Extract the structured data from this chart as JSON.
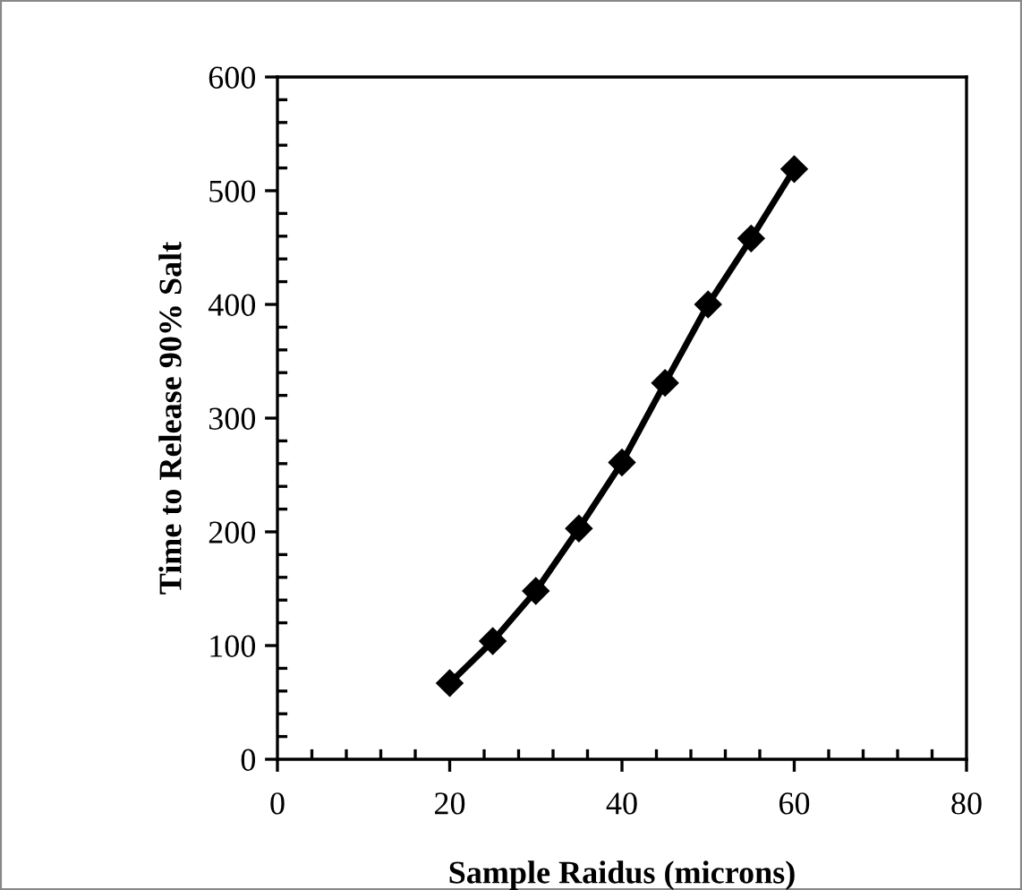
{
  "chart_data": {
    "type": "line",
    "xlabel": "Sample Raidus (microns)",
    "ylabel": "Time to Release 90% Salt",
    "x": [
      20,
      25,
      30,
      35,
      40,
      45,
      50,
      55,
      60
    ],
    "series": [
      {
        "color": "#000000",
        "values": [
          67,
          104,
          148,
          203,
          261,
          331,
          400,
          458,
          519
        ]
      }
    ],
    "xlim": [
      0,
      80
    ],
    "xticks": [
      0,
      20,
      40,
      60,
      80
    ],
    "ylim": [
      0,
      600
    ],
    "yticks": [
      0,
      100,
      200,
      300,
      400,
      500,
      600
    ],
    "marker": "diamond",
    "line_style": "solid",
    "grid": false,
    "legend": false
  }
}
